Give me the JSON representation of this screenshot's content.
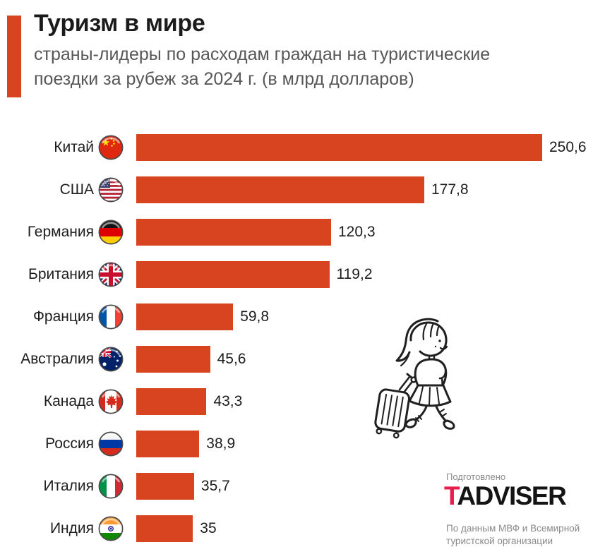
{
  "chart_data": {
    "type": "bar",
    "orientation": "horizontal",
    "title": "Туризм в мире",
    "subtitle_line1": "страны-лидеры по расходам граждан на туристические",
    "subtitle_line2": "поездки за рубеж за 2024 г. (в млрд долларов)",
    "unit": "млрд долларов",
    "year": "2024",
    "bar_color": "#d8441f",
    "xlim": [
      0,
      260
    ],
    "grid": false,
    "legend": false,
    "categories": [
      "Китай",
      "США",
      "Германия",
      "Британия",
      "Франция",
      "Австралия",
      "Канада",
      "Россия",
      "Италия",
      "Индия"
    ],
    "values": [
      250.6,
      177.8,
      120.3,
      119.2,
      59.8,
      45.6,
      43.3,
      38.9,
      35.7,
      35
    ],
    "rows": [
      {
        "label": "Китай",
        "value": 250.6,
        "value_label": "250,6",
        "flag": "flag-china"
      },
      {
        "label": "США",
        "value": 177.8,
        "value_label": "177,8",
        "flag": "flag-usa"
      },
      {
        "label": "Германия",
        "value": 120.3,
        "value_label": "120,3",
        "flag": "flag-germany"
      },
      {
        "label": "Британия",
        "value": 119.2,
        "value_label": "119,2",
        "flag": "flag-uk"
      },
      {
        "label": "Франция",
        "value": 59.8,
        "value_label": "59,8",
        "flag": "flag-france"
      },
      {
        "label": "Австралия",
        "value": 45.6,
        "value_label": "45,6",
        "flag": "flag-australia"
      },
      {
        "label": "Канада",
        "value": 43.3,
        "value_label": "43,3",
        "flag": "flag-canada"
      },
      {
        "label": "Россия",
        "value": 38.9,
        "value_label": "38,9",
        "flag": "flag-russia"
      },
      {
        "label": "Италия",
        "value": 35.7,
        "value_label": "35,7",
        "flag": "flag-italy"
      },
      {
        "label": "Индия",
        "value": 35,
        "value_label": "35",
        "flag": "flag-india"
      }
    ]
  },
  "illustration": {
    "name": "doodle-girl-with-suitcase"
  },
  "footer": {
    "prepared_label": "Подготовлено",
    "logo_t": "T",
    "logo_rest": "ADVISER",
    "logo_t_color": "#e61e4d",
    "source_line1": "По данным МВФ и Всемирной",
    "source_line2": "туристской организации"
  }
}
